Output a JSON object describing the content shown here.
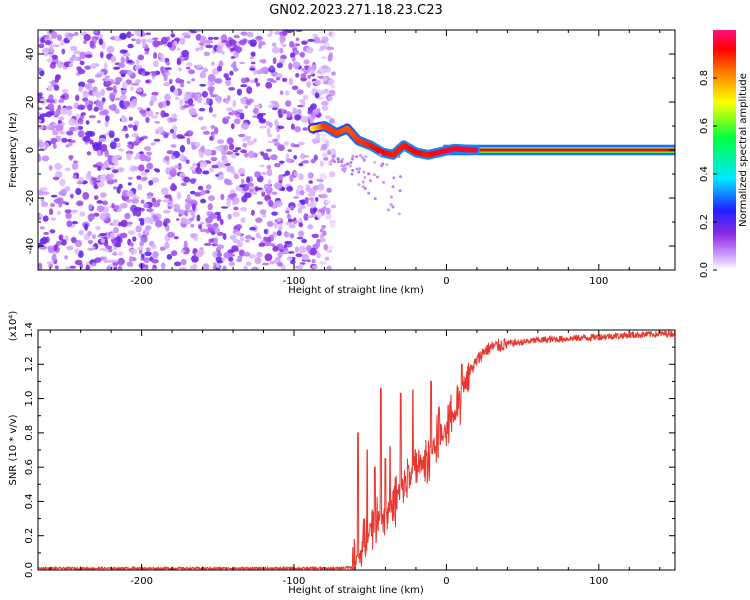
{
  "title": "GN02.2023.271.18.23.C23",
  "colors": {
    "snr_line": "#e8372f",
    "axis": "#000000"
  },
  "chart_data": [
    {
      "type": "heatmap",
      "xlabel": "Height of straight line (km)",
      "ylabel": "Frequency (Hz)",
      "xlim": [
        -268,
        150
      ],
      "ylim": [
        -50,
        50
      ],
      "x_ticks": [
        -200,
        -100,
        0,
        100
      ],
      "y_ticks": [
        -40,
        -20,
        0,
        20,
        40
      ],
      "colorbar": {
        "label": "Normalized spectral amplitude",
        "range": [
          0,
          1
        ],
        "ticks": [
          "0.0",
          "0.2",
          "0.4",
          "0.6",
          "0.8"
        ],
        "colormap": "rainbow"
      },
      "features": {
        "noise_region_x": [
          -268,
          -80
        ],
        "trace_points": [
          [
            -88,
            9,
            0.5
          ],
          [
            -80,
            10,
            0.85
          ],
          [
            -72,
            7,
            0.85
          ],
          [
            -65,
            9,
            0.8
          ],
          [
            -58,
            4,
            0.85
          ],
          [
            -50,
            2,
            0.9
          ],
          [
            -42,
            -1,
            0.95
          ],
          [
            -35,
            -2,
            0.9
          ],
          [
            -28,
            2,
            0.9
          ],
          [
            -20,
            -1,
            0.95
          ],
          [
            -12,
            -2,
            0.9
          ],
          [
            -5,
            -1,
            1.0
          ],
          [
            5,
            0.5,
            1.0
          ],
          [
            20,
            0,
            1.0
          ],
          [
            60,
            0,
            1.0
          ],
          [
            100,
            0,
            1.0
          ],
          [
            150,
            0,
            1.0
          ]
        ]
      }
    },
    {
      "type": "line",
      "xlabel": "Height of straight line (km)",
      "ylabel": "SNR (10 * v/v)",
      "y_multiplier": "(x10⁴)",
      "xlim": [
        -268,
        150
      ],
      "ylim": [
        0,
        1.4
      ],
      "x_ticks": [
        -200,
        -100,
        0,
        100
      ],
      "y_ticks": [
        "0.0",
        "0.2",
        "0.4",
        "0.6",
        "0.8",
        "1.0",
        "1.2",
        "1.4"
      ],
      "series": [
        {
          "x": [
            -268,
            -200,
            -150,
            -100,
            -70,
            -60,
            -55,
            -50,
            -45,
            -40,
            -35,
            -30,
            -25,
            -20,
            -15,
            -10,
            -5,
            0,
            5,
            10,
            15,
            20,
            25,
            30,
            40,
            50,
            60,
            80,
            100,
            120,
            150
          ],
          "y": [
            0.01,
            0.01,
            0.01,
            0.01,
            0.01,
            0.02,
            0.12,
            0.25,
            0.3,
            0.32,
            0.38,
            0.45,
            0.55,
            0.6,
            0.62,
            0.7,
            0.75,
            0.8,
            0.9,
            1.05,
            1.15,
            1.22,
            1.28,
            1.3,
            1.32,
            1.33,
            1.34,
            1.35,
            1.36,
            1.37,
            1.38
          ],
          "spikes": [
            [
              -58,
              0.8
            ],
            [
              -52,
              0.7
            ],
            [
              -47,
              0.6
            ],
            [
              -43,
              1.06
            ],
            [
              -40,
              0.65
            ],
            [
              -37,
              0.72
            ],
            [
              -30,
              1.03
            ],
            [
              -22,
              1.05
            ],
            [
              -10,
              1.1
            ],
            [
              -5,
              0.95
            ],
            [
              10,
              1.2
            ]
          ]
        }
      ]
    }
  ]
}
